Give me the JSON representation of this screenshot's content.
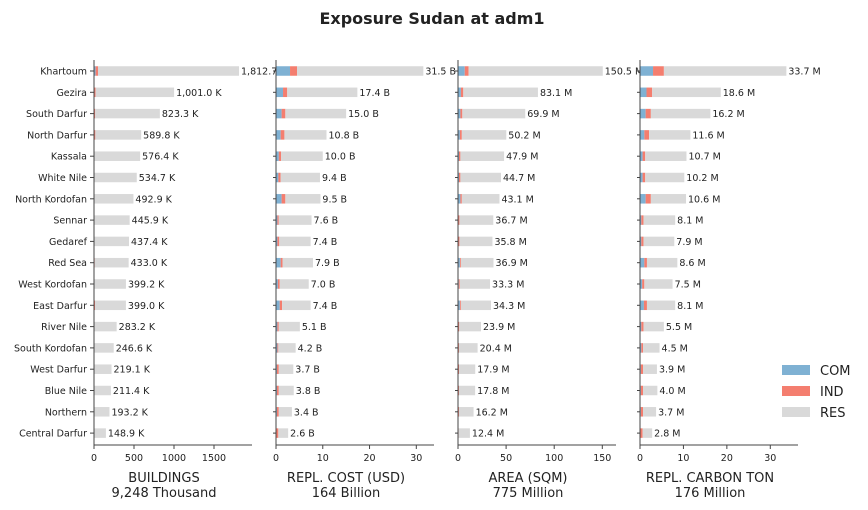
{
  "title": "Exposure Sudan at adm1",
  "colors": {
    "COM": "#7fb1d3",
    "IND": "#f47e6f",
    "RES": "#d9d9d9"
  },
  "legend": [
    "COM",
    "IND",
    "RES"
  ],
  "chart_data": [
    {
      "type": "bar",
      "orientation": "horizontal",
      "stacked": true,
      "xlabel": "BUILDINGS",
      "xlabel2": "9,248 Thousand",
      "xlim": [
        0,
        1900
      ],
      "xticks": [
        0,
        500,
        1000,
        1500
      ],
      "categories": [
        "Khartoum",
        "Gezira",
        "South Darfur",
        "North Darfur",
        "Kassala",
        "White Nile",
        "North Kordofan",
        "Sennar",
        "Gedaref",
        "Red Sea",
        "West Kordofan",
        "East Darfur",
        "River Nile",
        "South Kordofan",
        "West Darfur",
        "Blue Nile",
        "Northern",
        "Central Darfur"
      ],
      "series": [
        {
          "name": "COM",
          "values": [
            20,
            5,
            3,
            2,
            1.5,
            1.5,
            1.5,
            1,
            1,
            1.5,
            1,
            1.5,
            1,
            1,
            1,
            1,
            1,
            1
          ]
        },
        {
          "name": "IND",
          "values": [
            30,
            15,
            12,
            15,
            3,
            3,
            5,
            3,
            3,
            8,
            3,
            12,
            3,
            2,
            5,
            3,
            2,
            2
          ]
        },
        {
          "name": "RES",
          "values": [
            1762.7,
            981.0,
            808.3,
            572.8,
            571.9,
            530.2,
            486.4,
            441.9,
            433.4,
            423.5,
            395.2,
            385.5,
            279.2,
            243.6,
            213.1,
            207.4,
            190.2,
            145.9
          ]
        }
      ],
      "labels": [
        "1,812.7",
        "1,001.0 K",
        "823.3 K",
        "589.8 K",
        "576.4 K",
        "534.7 K",
        "492.9 K",
        "445.9 K",
        "437.4 K",
        "433.0 K",
        "399.2 K",
        "399.0 K",
        "283.2 K",
        "246.6 K",
        "219.1 K",
        "211.4 K",
        "193.2 K",
        "148.9 K"
      ]
    },
    {
      "type": "bar",
      "orientation": "horizontal",
      "stacked": true,
      "xlabel": "REPL. COST (USD)",
      "xlabel2": "164 Billion",
      "xlim": [
        0,
        32.5
      ],
      "xticks": [
        0,
        10,
        20,
        30
      ],
      "series": [
        {
          "name": "COM",
          "values": [
            3.0,
            1.5,
            1.2,
            1.0,
            0.6,
            0.5,
            1.2,
            0.3,
            0.3,
            1.0,
            0.4,
            0.8,
            0.3,
            0.3,
            0.2,
            0.2,
            0.2,
            0.1
          ]
        },
        {
          "name": "IND",
          "values": [
            1.5,
            0.9,
            0.8,
            0.8,
            0.5,
            0.5,
            0.8,
            0.3,
            0.4,
            0.4,
            0.4,
            0.5,
            0.3,
            0.2,
            0.4,
            0.4,
            0.4,
            0.4
          ]
        },
        {
          "name": "RES",
          "values": [
            27.0,
            15.0,
            13.0,
            9.0,
            8.9,
            8.4,
            7.5,
            7.0,
            6.7,
            6.5,
            6.2,
            6.1,
            4.5,
            3.7,
            3.1,
            3.2,
            2.8,
            2.1
          ]
        }
      ],
      "labels": [
        "31.5 B",
        "17.4 B",
        "15.0 B",
        "10.8 B",
        "10.0 B",
        "9.4 B",
        "9.5 B",
        "7.6 B",
        "7.4 B",
        "7.9 B",
        "7.0 B",
        "7.4 B",
        "5.1 B",
        "4.2 B",
        "3.7 B",
        "3.8 B",
        "3.4 B",
        "2.6 B"
      ]
    },
    {
      "type": "bar",
      "orientation": "horizontal",
      "stacked": true,
      "xlabel": "AREA (SQM)",
      "xlabel2": "775 Million",
      "xlim": [
        0,
        158
      ],
      "xticks": [
        0,
        50,
        100,
        150
      ],
      "series": [
        {
          "name": "COM",
          "values": [
            7.0,
            3.0,
            2.5,
            2.0,
            1.0,
            1.0,
            2.5,
            0.5,
            0.5,
            2.0,
            0.8,
            2.0,
            0.5,
            0.5,
            0.3,
            0.3,
            0.3,
            0.2
          ]
        },
        {
          "name": "IND",
          "values": [
            4.0,
            2.5,
            2.0,
            2.0,
            1.5,
            1.5,
            1.5,
            1.0,
            1.0,
            1.0,
            1.0,
            1.0,
            0.8,
            0.5,
            0.8,
            0.7,
            0.7,
            0.5
          ]
        },
        {
          "name": "RES",
          "values": [
            139.5,
            77.6,
            65.4,
            46.2,
            45.4,
            42.2,
            39.1,
            35.2,
            34.3,
            33.9,
            31.5,
            31.3,
            22.6,
            19.4,
            16.8,
            16.8,
            15.2,
            11.7
          ]
        }
      ],
      "labels": [
        "150.5 M",
        "83.1 M",
        "69.9 M",
        "50.2 M",
        "47.9 M",
        "44.7 M",
        "43.1 M",
        "36.7 M",
        "35.8 M",
        "36.9 M",
        "33.3 M",
        "34.3 M",
        "23.9 M",
        "20.4 M",
        "17.9 M",
        "17.8 M",
        "16.2 M",
        "12.4 M"
      ]
    },
    {
      "type": "bar",
      "orientation": "horizontal",
      "stacked": true,
      "xlabel": "REPL. CARBON TON",
      "xlabel2": "176 Million",
      "xlim": [
        0,
        35
      ],
      "xticks": [
        0,
        10,
        20,
        30
      ],
      "series": [
        {
          "name": "COM",
          "values": [
            3.0,
            1.5,
            1.3,
            1.0,
            0.6,
            0.6,
            1.3,
            0.3,
            0.3,
            1.0,
            0.5,
            0.9,
            0.3,
            0.3,
            0.2,
            0.2,
            0.2,
            0.1
          ]
        },
        {
          "name": "IND",
          "values": [
            2.5,
            1.3,
            1.2,
            1.1,
            0.6,
            0.6,
            1.2,
            0.5,
            0.5,
            0.6,
            0.5,
            0.7,
            0.5,
            0.4,
            0.5,
            0.5,
            0.5,
            0.5
          ]
        },
        {
          "name": "RES",
          "values": [
            28.2,
            15.8,
            13.7,
            9.5,
            9.5,
            9.0,
            8.1,
            7.3,
            7.1,
            7.0,
            6.5,
            6.5,
            4.7,
            3.8,
            3.2,
            3.3,
            3.0,
            2.2
          ]
        }
      ],
      "labels": [
        "33.7 M",
        "18.6 M",
        "16.2 M",
        "11.6 M",
        "10.7 M",
        "10.2 M",
        "10.6 M",
        "8.1 M",
        "7.9 M",
        "8.6 M",
        "7.5 M",
        "8.1 M",
        "5.5 M",
        "4.5 M",
        "3.9 M",
        "4.0 M",
        "3.7 M",
        "2.8 M"
      ]
    }
  ]
}
